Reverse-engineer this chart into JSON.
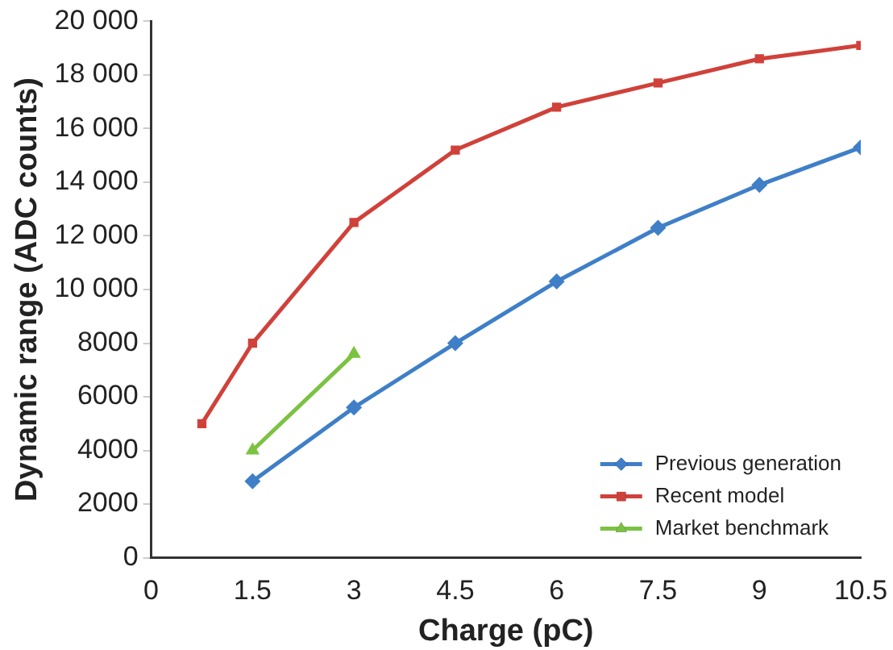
{
  "chart_data": {
    "type": "line",
    "xlabel": "Charge (pC)",
    "ylabel": "Dynamic range (ADC counts)",
    "xlim": [
      0,
      10.5
    ],
    "xticks": [
      0,
      1.5,
      3,
      4.5,
      6,
      7.5,
      9,
      10.5
    ],
    "ylim": [
      0,
      20000
    ],
    "yticks": [
      0,
      2000,
      4000,
      6000,
      8000,
      {
        "value": 10000,
        "label": "10 000"
      },
      {
        "value": 12000,
        "label": "12 000"
      },
      {
        "value": 14000,
        "label": "14 000"
      },
      {
        "value": 16000,
        "label": "16 000"
      },
      {
        "value": 18000,
        "label": "18 000"
      },
      {
        "value": 20000,
        "label": "20 000"
      }
    ],
    "grid": false,
    "legend": "bottom right",
    "series": [
      {
        "name": "Previous generation",
        "color": "#3f7fc8",
        "marker": "diamond",
        "x": [
          1.5,
          3,
          4.5,
          6,
          7.5,
          9,
          10.5
        ],
        "values": [
          2850,
          5600,
          8000,
          10300,
          12300,
          13900,
          15300
        ]
      },
      {
        "name": "Recent model",
        "color": "#d0413a",
        "marker": "square",
        "x": [
          0.75,
          1.5,
          3,
          4.5,
          6,
          7.5,
          9,
          10.5
        ],
        "values": [
          5000,
          8000,
          12500,
          15200,
          16800,
          17700,
          18600,
          19100
        ]
      },
      {
        "name": "Market benchmark",
        "color": "#7cc242",
        "marker": "triangle",
        "x": [
          1.5,
          3
        ],
        "values": [
          4000,
          7600
        ]
      }
    ]
  }
}
